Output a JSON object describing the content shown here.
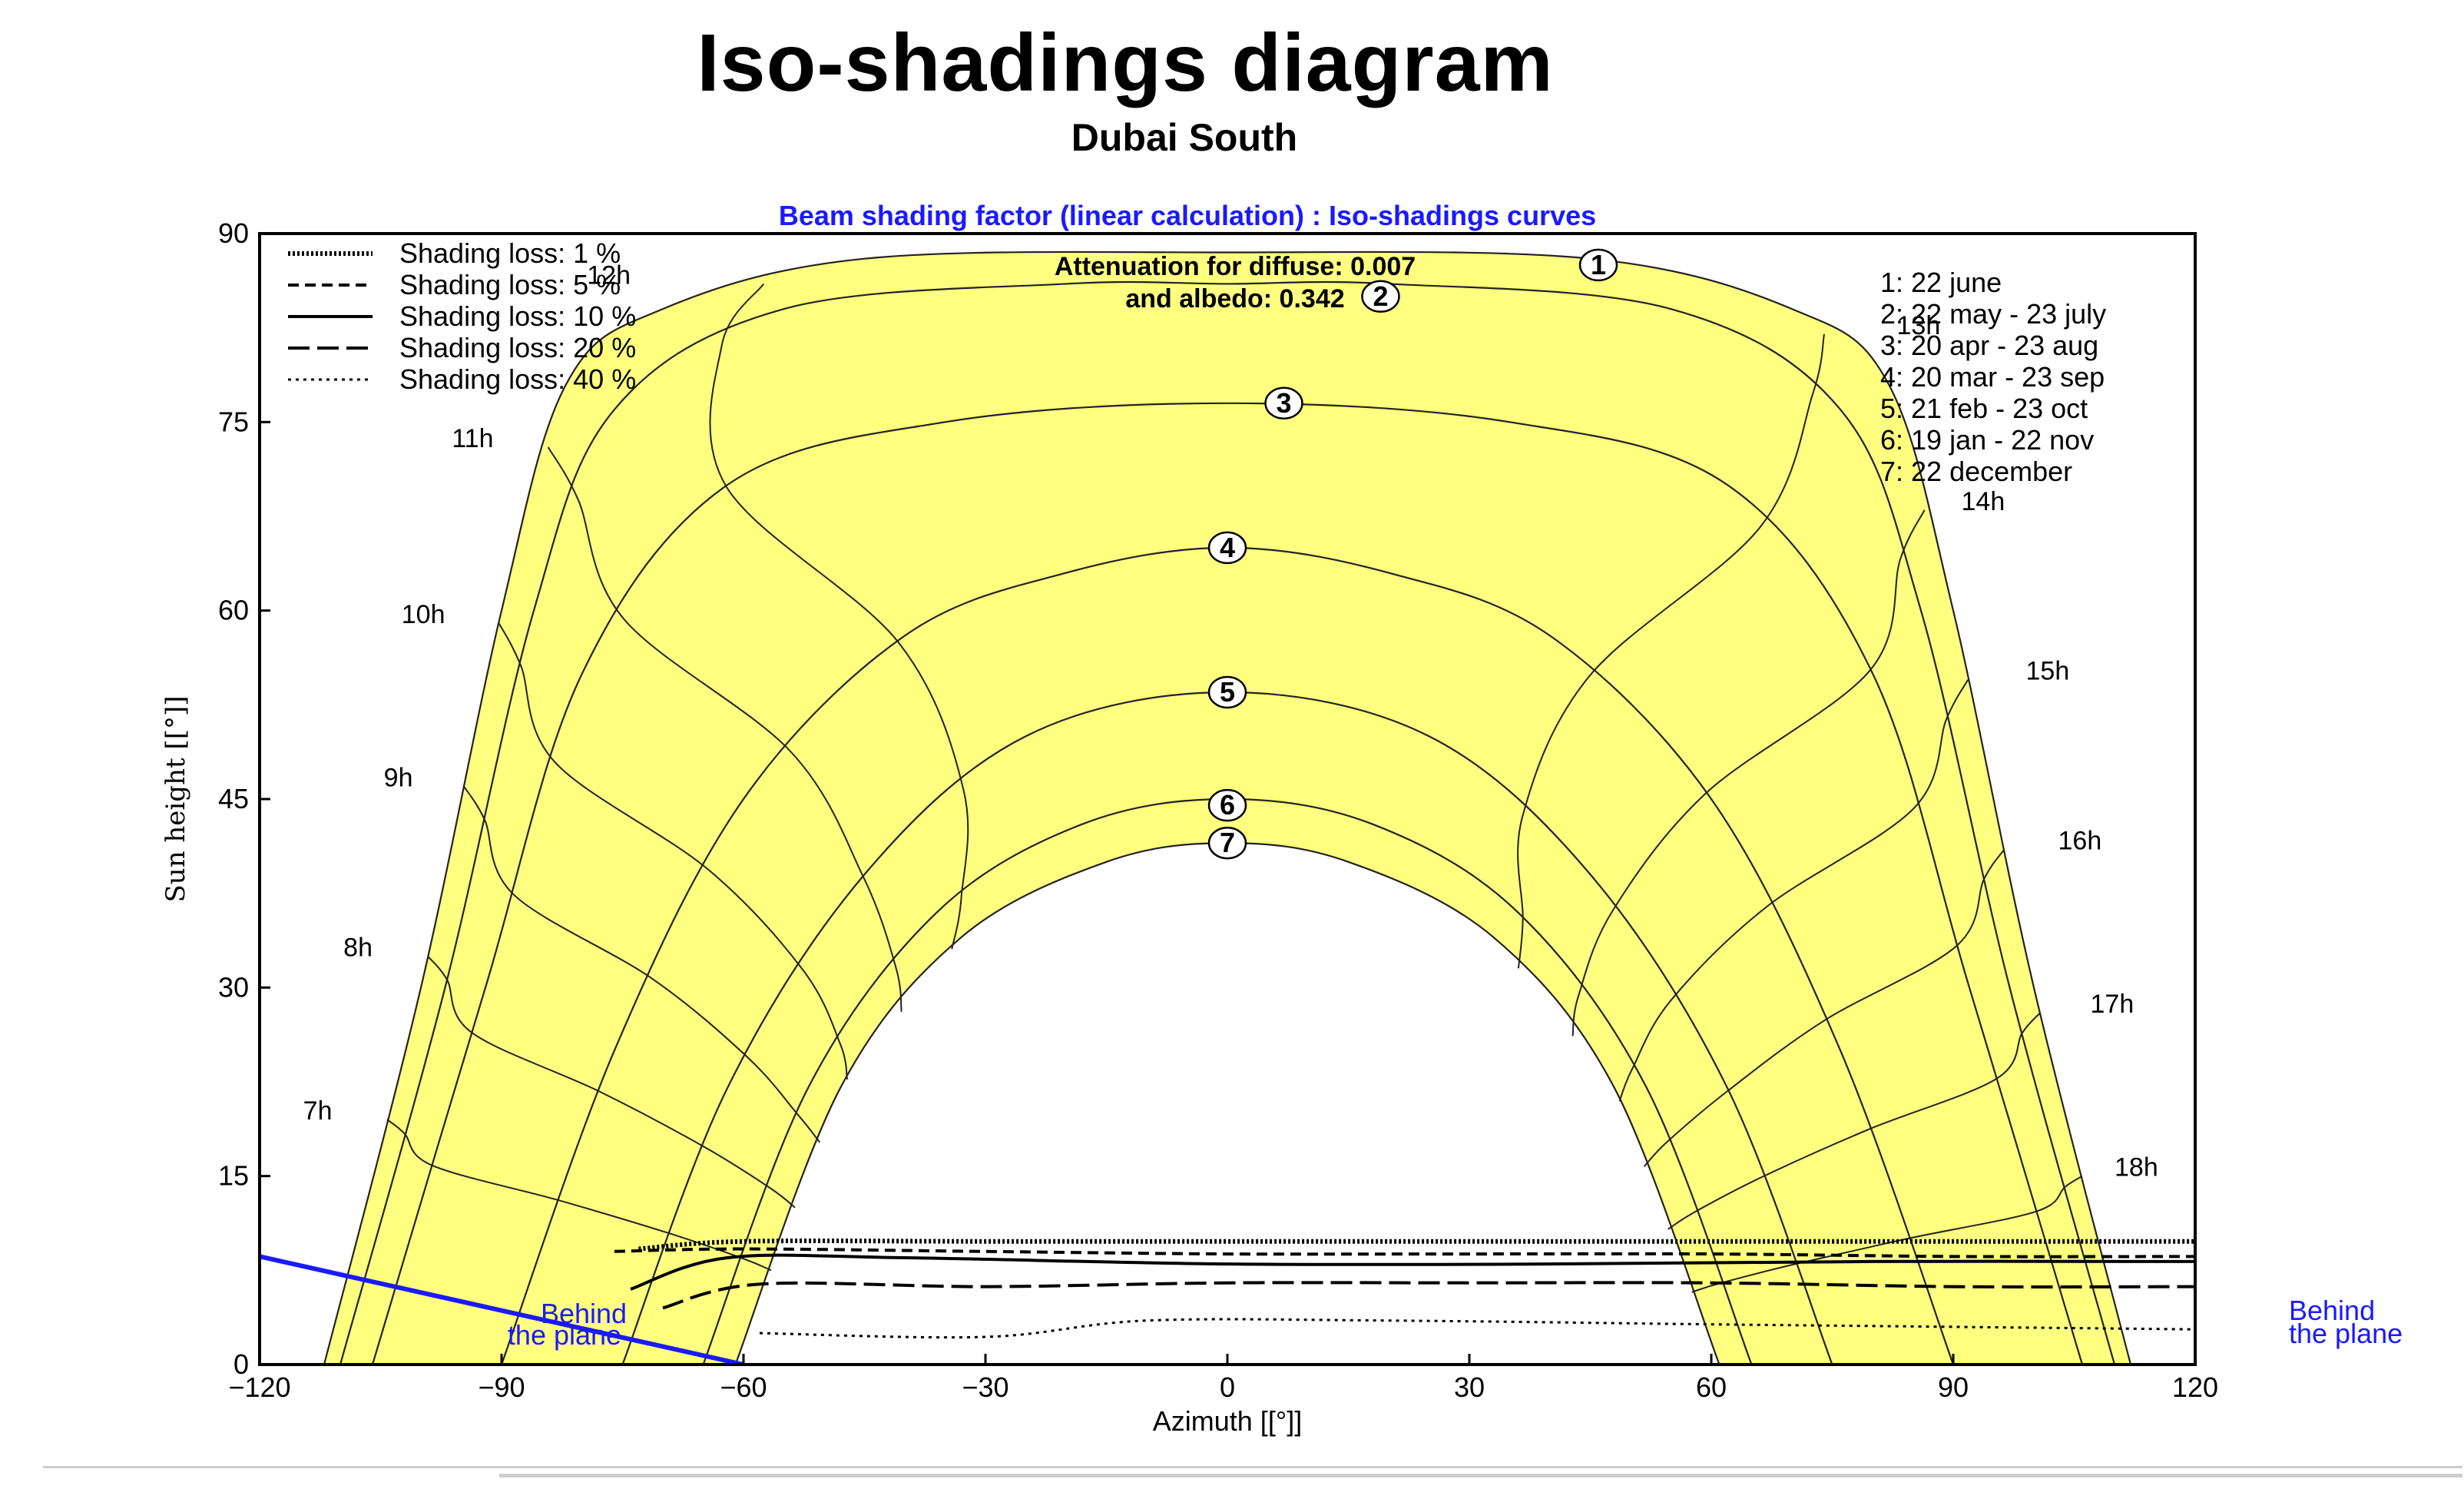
{
  "title": "Iso-shadings diagram",
  "subtitle": "Dubai South",
  "chart_data": {
    "type": "line",
    "title": "Beam shading factor (linear calculation) : Iso-shadings curves",
    "xlabel": "Azimuth [[°]]",
    "ylabel": "Sun height [[°]]",
    "xlim": [
      -120,
      120
    ],
    "ylim": [
      0,
      90
    ],
    "xticks": [
      -120,
      -90,
      -60,
      -30,
      0,
      30,
      60,
      90,
      120
    ],
    "yticks": [
      0,
      15,
      30,
      45,
      60,
      75,
      90
    ],
    "xtick_labels": [
      "−120",
      "−90",
      "−60",
      "−30",
      "0",
      "30",
      "60",
      "90",
      "120"
    ],
    "ytick_labels": [
      "0",
      "15",
      "30",
      "45",
      "60",
      "75",
      "90"
    ],
    "attenuation_lines": [
      "Attenuation for diffuse: 0.007",
      "and albedo: 0.342"
    ],
    "colors": {
      "sun_region": "#ffff80",
      "plane_line": "#1a1aff",
      "axis_title": "#1a1aff"
    },
    "legend_left": [
      {
        "label": "Shading loss: 1 %",
        "style": "dotted-heavy"
      },
      {
        "label": "Shading loss: 5 %",
        "style": "dashed"
      },
      {
        "label": "Shading loss: 10 %",
        "style": "solid"
      },
      {
        "label": "Shading loss: 20 %",
        "style": "long-dash"
      },
      {
        "label": "Shading loss: 40 %",
        "style": "dotted"
      }
    ],
    "legend_right": [
      "1: 22 june",
      "2: 22 may - 23 july",
      "3: 20 apr - 23 aug",
      "4: 20 mar - 23 sep",
      "5: 21 feb - 23 oct",
      "6: 19 jan - 22 nov",
      "7: 22 december"
    ],
    "date_curves": [
      {
        "id": "1",
        "points": [
          [
            -112,
            0
          ],
          [
            -100,
            30
          ],
          [
            -90,
            60
          ],
          [
            -82,
            78
          ],
          [
            -70,
            84
          ],
          [
            -45,
            88
          ],
          [
            0,
            88.5
          ],
          [
            45,
            88
          ],
          [
            70,
            84
          ],
          [
            82,
            78
          ],
          [
            90,
            60
          ],
          [
            100,
            30
          ],
          [
            112,
            0
          ]
        ]
      },
      {
        "id": "2",
        "points": [
          [
            -110,
            0
          ],
          [
            -97,
            30
          ],
          [
            -86,
            60
          ],
          [
            -76,
            76
          ],
          [
            -55,
            84
          ],
          [
            -20,
            86
          ],
          [
            0,
            86
          ],
          [
            20,
            86
          ],
          [
            55,
            84
          ],
          [
            76,
            76
          ],
          [
            86,
            60
          ],
          [
            97,
            30
          ],
          [
            110,
            0
          ]
        ]
      },
      {
        "id": "3",
        "points": [
          [
            -106,
            0
          ],
          [
            -92,
            30
          ],
          [
            -80,
            55
          ],
          [
            -62,
            70
          ],
          [
            -35,
            75
          ],
          [
            0,
            76.5
          ],
          [
            35,
            75
          ],
          [
            62,
            70
          ],
          [
            80,
            55
          ],
          [
            92,
            30
          ],
          [
            106,
            0
          ]
        ]
      },
      {
        "id": "4",
        "points": [
          [
            -90,
            0
          ],
          [
            -76,
            25
          ],
          [
            -60,
            45
          ],
          [
            -40,
            58
          ],
          [
            -20,
            63
          ],
          [
            0,
            65
          ],
          [
            20,
            63
          ],
          [
            40,
            58
          ],
          [
            60,
            45
          ],
          [
            76,
            25
          ],
          [
            90,
            0
          ]
        ]
      },
      {
        "id": "5",
        "points": [
          [
            -75,
            0
          ],
          [
            -62,
            22
          ],
          [
            -45,
            39
          ],
          [
            -25,
            50
          ],
          [
            0,
            53.5
          ],
          [
            25,
            50
          ],
          [
            45,
            39
          ],
          [
            62,
            22
          ],
          [
            75,
            0
          ]
        ]
      },
      {
        "id": "6",
        "points": [
          [
            -65,
            0
          ],
          [
            -52,
            22
          ],
          [
            -36,
            36
          ],
          [
            -18,
            43
          ],
          [
            0,
            45
          ],
          [
            18,
            43
          ],
          [
            36,
            36
          ],
          [
            52,
            22
          ],
          [
            65,
            0
          ]
        ]
      },
      {
        "id": "7",
        "points": [
          [
            -61,
            0
          ],
          [
            -48,
            22
          ],
          [
            -33,
            34
          ],
          [
            -15,
            40
          ],
          [
            0,
            41.5
          ],
          [
            15,
            40
          ],
          [
            33,
            34
          ],
          [
            48,
            22
          ],
          [
            61,
            0
          ]
        ]
      }
    ],
    "date_labels": [
      {
        "id": "1",
        "x": 46,
        "y": 87.5
      },
      {
        "id": "2",
        "x": 19,
        "y": 85
      },
      {
        "id": "3",
        "x": 7,
        "y": 76.5
      },
      {
        "id": "4",
        "x": 0,
        "y": 65
      },
      {
        "id": "5",
        "x": 0,
        "y": 53.5
      },
      {
        "id": "6",
        "x": 0,
        "y": 44.5
      },
      {
        "id": "7",
        "x": 0,
        "y": 41.5
      }
    ],
    "hour_labels": [
      {
        "label": "7h",
        "x": -111,
        "y": 19.5
      },
      {
        "label": "8h",
        "x": -106,
        "y": 32.5
      },
      {
        "label": "9h",
        "x": -101,
        "y": 46
      },
      {
        "label": "10h",
        "x": -97,
        "y": 59
      },
      {
        "label": "11h",
        "x": -91,
        "y": 73
      },
      {
        "label": "12h",
        "x": -74,
        "y": 86
      },
      {
        "label": "13h",
        "x": 83,
        "y": 82
      },
      {
        "label": "14h",
        "x": 91,
        "y": 68
      },
      {
        "label": "15h",
        "x": 99,
        "y": 54.5
      },
      {
        "label": "16h",
        "x": 103,
        "y": 41
      },
      {
        "label": "17h",
        "x": 107,
        "y": 28
      },
      {
        "label": "18h",
        "x": 110,
        "y": 15
      }
    ],
    "iso_shading_curves": [
      {
        "loss": "1 %",
        "style": "dotted-heavy",
        "points": [
          [
            -73,
            9.2
          ],
          [
            -60,
            9.8
          ],
          [
            -30,
            9.8
          ],
          [
            0,
            9.8
          ],
          [
            30,
            9.8
          ],
          [
            60,
            9.8
          ],
          [
            90,
            9.8
          ],
          [
            120,
            9.8
          ]
        ]
      },
      {
        "loss": "5 %",
        "style": "dashed",
        "points": [
          [
            -76,
            9
          ],
          [
            -60,
            9.2
          ],
          [
            -30,
            9
          ],
          [
            0,
            8.8
          ],
          [
            30,
            8.8
          ],
          [
            60,
            8.8
          ],
          [
            90,
            8.6
          ],
          [
            120,
            8.6
          ]
        ]
      },
      {
        "loss": "10 %",
        "style": "solid",
        "points": [
          [
            -74,
            6
          ],
          [
            -62,
            8.5
          ],
          [
            -40,
            8.5
          ],
          [
            0,
            8
          ],
          [
            40,
            8
          ],
          [
            80,
            8.2
          ],
          [
            120,
            8.2
          ]
        ]
      },
      {
        "loss": "20 %",
        "style": "long-dash",
        "points": [
          [
            -70,
            4.5
          ],
          [
            -58,
            6.4
          ],
          [
            -30,
            6.2
          ],
          [
            0,
            6.5
          ],
          [
            30,
            6.5
          ],
          [
            60,
            6.5
          ],
          [
            90,
            6.2
          ],
          [
            120,
            6.2
          ]
        ]
      },
      {
        "loss": "40 %",
        "style": "dotted",
        "points": [
          [
            -58,
            2.5
          ],
          [
            -30,
            2.2
          ],
          [
            -10,
            3.5
          ],
          [
            20,
            3.5
          ],
          [
            60,
            3.2
          ],
          [
            90,
            3
          ],
          [
            120,
            2.8
          ]
        ]
      }
    ],
    "plane_line": [
      [
        -120,
        8.6
      ],
      [
        -60,
        0
      ]
    ],
    "behind_plane_label": [
      "Behind",
      "the plane"
    ]
  }
}
